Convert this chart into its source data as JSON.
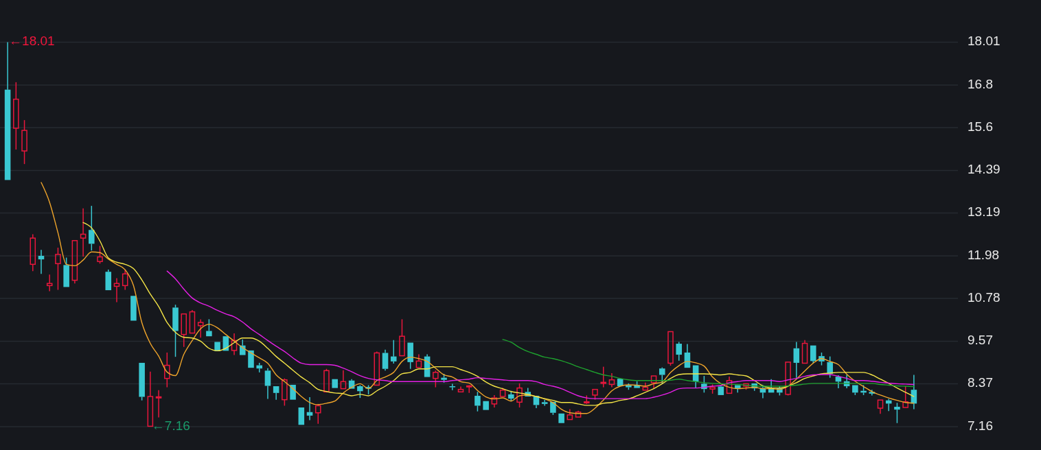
{
  "chart_data": {
    "type": "candlestick",
    "categories": [
      null,
      null,
      null,
      null,
      null,
      null,
      null,
      null,
      null,
      null,
      null,
      null,
      null,
      null,
      null,
      null,
      null,
      null,
      null,
      null,
      null,
      null,
      null,
      null,
      null,
      null,
      null,
      null,
      null,
      null,
      null,
      null,
      null,
      null,
      null,
      null,
      null,
      null,
      null,
      null,
      null,
      null,
      null,
      null,
      null,
      null,
      null,
      null,
      null,
      null,
      null,
      null,
      null,
      null,
      null,
      null,
      null,
      null,
      null,
      null,
      null,
      null,
      null,
      null,
      null,
      null,
      null,
      null,
      null,
      null,
      null,
      null,
      null,
      null,
      null,
      null,
      null,
      null,
      null,
      null,
      null,
      null,
      null,
      null,
      null,
      null,
      null,
      null,
      null,
      null,
      null,
      null,
      null,
      null,
      null,
      null,
      null,
      null,
      null,
      null,
      null,
      null,
      null,
      null,
      null,
      null,
      null,
      null,
      null
    ],
    "ohlc": [
      [
        16.67,
        18.01,
        14.12,
        14.12
      ],
      [
        15.58,
        16.88,
        14.98,
        16.4
      ],
      [
        14.94,
        15.81,
        14.57,
        15.52
      ],
      [
        11.74,
        12.59,
        11.55,
        12.48
      ],
      [
        11.98,
        12.15,
        11.47,
        11.88
      ],
      [
        11.14,
        11.45,
        10.98,
        11.2
      ],
      [
        11.76,
        12.21,
        11.02,
        12.02
      ],
      [
        11.72,
        11.93,
        11.1,
        11.1
      ],
      [
        11.29,
        12.41,
        11.2,
        12.41
      ],
      [
        12.48,
        13.32,
        11.96,
        12.59
      ],
      [
        12.71,
        13.39,
        12.13,
        12.32
      ],
      [
        11.82,
        12.26,
        11.76,
        11.95
      ],
      [
        11.53,
        11.59,
        11.01,
        11.01
      ],
      [
        11.12,
        11.35,
        10.67,
        11.2
      ],
      [
        11.14,
        11.59,
        11.02,
        11.47
      ],
      [
        10.85,
        10.85,
        10.15,
        10.15
      ],
      [
        8.96,
        8.96,
        7.9,
        8.0
      ],
      [
        7.17,
        8.71,
        7.16,
        8.01
      ],
      [
        7.97,
        8.19,
        7.42,
        8.0
      ],
      [
        8.52,
        9.25,
        8.27,
        8.89
      ],
      [
        10.52,
        10.6,
        9.13,
        9.86
      ],
      [
        9.76,
        10.34,
        9.41,
        10.34
      ],
      [
        9.8,
        10.45,
        9.8,
        10.4
      ],
      [
        10.01,
        10.19,
        9.67,
        10.1
      ],
      [
        9.86,
        10.19,
        9.71,
        9.71
      ],
      [
        9.55,
        9.55,
        9.29,
        9.29
      ],
      [
        9.71,
        9.71,
        9.3,
        9.3
      ],
      [
        9.31,
        9.79,
        9.18,
        9.59
      ],
      [
        9.45,
        9.62,
        9.18,
        9.18
      ],
      [
        9.31,
        9.31,
        8.82,
        8.82
      ],
      [
        8.89,
        8.96,
        8.69,
        8.8
      ],
      [
        8.74,
        8.81,
        7.94,
        8.31
      ],
      [
        8.3,
        8.3,
        7.92,
        8.11
      ],
      [
        7.92,
        8.52,
        7.75,
        8.48
      ],
      [
        8.34,
        8.34,
        7.92,
        7.92
      ],
      [
        7.7,
        7.7,
        7.21,
        7.21
      ],
      [
        7.57,
        7.99,
        7.34,
        7.47
      ],
      [
        7.55,
        7.8,
        7.24,
        7.75
      ],
      [
        8.14,
        8.79,
        8.14,
        8.74
      ],
      [
        8.5,
        8.5,
        8.25,
        8.25
      ],
      [
        8.23,
        8.75,
        8.23,
        8.43
      ],
      [
        8.46,
        8.5,
        8.23,
        8.23
      ],
      [
        8.3,
        8.33,
        7.97,
        8.16
      ],
      [
        8.28,
        8.33,
        8.07,
        8.23
      ],
      [
        8.33,
        9.28,
        8.33,
        9.24
      ],
      [
        9.24,
        9.33,
        8.74,
        8.79
      ],
      [
        9.14,
        9.6,
        8.94,
        9.0
      ],
      [
        9.16,
        10.19,
        9.16,
        9.71
      ],
      [
        9.53,
        9.53,
        8.79,
        8.98
      ],
      [
        8.83,
        9.2,
        8.83,
        9.01
      ],
      [
        9.14,
        9.2,
        8.56,
        8.56
      ],
      [
        8.52,
        8.74,
        8.27,
        8.69
      ],
      [
        8.54,
        8.65,
        8.4,
        8.48
      ],
      [
        8.3,
        8.37,
        8.19,
        8.27
      ],
      [
        8.14,
        8.29,
        8.14,
        8.21
      ],
      [
        8.29,
        8.33,
        8.11,
        8.31
      ],
      [
        8.03,
        8.14,
        7.59,
        7.75
      ],
      [
        7.88,
        7.88,
        7.63,
        7.63
      ],
      [
        7.8,
        8.05,
        7.7,
        7.97
      ],
      [
        8.01,
        8.25,
        8.01,
        8.19
      ],
      [
        8.07,
        8.17,
        7.88,
        7.95
      ],
      [
        7.85,
        8.38,
        7.7,
        8.25
      ],
      [
        8.14,
        8.25,
        8.01,
        8.01
      ],
      [
        8.03,
        8.03,
        7.68,
        7.77
      ],
      [
        7.85,
        7.92,
        7.75,
        7.8
      ],
      [
        7.86,
        7.86,
        7.49,
        7.55
      ],
      [
        7.53,
        7.53,
        7.26,
        7.26
      ],
      [
        7.36,
        7.65,
        7.36,
        7.49
      ],
      [
        7.43,
        7.61,
        7.43,
        7.57
      ],
      [
        7.83,
        8.04,
        7.8,
        7.86
      ],
      [
        8.05,
        8.21,
        7.92,
        8.21
      ],
      [
        8.38,
        8.85,
        8.27,
        8.41
      ],
      [
        8.35,
        8.67,
        8.27,
        8.48
      ],
      [
        8.51,
        8.51,
        8.3,
        8.3
      ],
      [
        8.33,
        8.38,
        8.2,
        8.27
      ],
      [
        8.33,
        8.44,
        8.25,
        8.25
      ],
      [
        8.19,
        8.4,
        8.19,
        8.27
      ],
      [
        8.4,
        8.59,
        8.24,
        8.59
      ],
      [
        8.8,
        8.83,
        8.37,
        8.62
      ],
      [
        8.95,
        9.84,
        8.88,
        9.84
      ],
      [
        9.5,
        9.55,
        9.02,
        9.19
      ],
      [
        9.25,
        9.49,
        8.82,
        8.82
      ],
      [
        8.89,
        8.89,
        8.25,
        8.43
      ],
      [
        8.37,
        8.59,
        8.12,
        8.22
      ],
      [
        8.22,
        8.35,
        8.09,
        8.27
      ],
      [
        8.29,
        8.33,
        8.05,
        8.05
      ],
      [
        8.1,
        8.57,
        8.1,
        8.46
      ],
      [
        8.33,
        8.33,
        8.12,
        8.24
      ],
      [
        8.3,
        8.38,
        8.2,
        8.37
      ],
      [
        8.38,
        8.38,
        8.17,
        8.24
      ],
      [
        8.25,
        8.33,
        7.96,
        8.12
      ],
      [
        8.25,
        8.5,
        8.12,
        8.12
      ],
      [
        8.24,
        8.3,
        8.04,
        8.12
      ],
      [
        8.07,
        8.98,
        8.04,
        8.98
      ],
      [
        9.37,
        9.55,
        8.54,
        8.96
      ],
      [
        8.95,
        9.6,
        8.95,
        9.51
      ],
      [
        9.45,
        9.45,
        8.94,
        9.01
      ],
      [
        9.15,
        9.25,
        8.89,
        9.0
      ],
      [
        8.98,
        9.14,
        8.54,
        8.65
      ],
      [
        8.57,
        8.61,
        8.24,
        8.43
      ],
      [
        8.44,
        8.62,
        8.24,
        8.3
      ],
      [
        8.33,
        8.33,
        8.05,
        8.12
      ],
      [
        8.17,
        8.33,
        8.05,
        8.12
      ],
      [
        8.14,
        8.2,
        8.04,
        8.09
      ],
      [
        7.68,
        7.91,
        7.52,
        7.91
      ],
      [
        7.9,
        7.94,
        7.6,
        7.81
      ],
      [
        7.72,
        7.83,
        7.26,
        7.64
      ],
      [
        7.7,
        8.3,
        7.7,
        7.86
      ],
      [
        8.2,
        8.62,
        7.65,
        7.81
      ]
    ],
    "colors": [
      "#3ac8d2",
      "#e8173c",
      "#e8173c",
      "#e8173c",
      "#3ac8d2",
      "#e8173c",
      "#e8173c",
      "#3ac8d2",
      "#e8173c",
      "#e8173c",
      "#3ac8d2",
      "#e8173c",
      "#3ac8d2",
      "#e8173c",
      "#e8173c",
      "#3ac8d2",
      "#3ac8d2",
      "#e8173c",
      "#e8173c",
      "#e8173c",
      "#3ac8d2",
      "#e8173c",
      "#e8173c",
      "#e8173c",
      "#3ac8d2",
      "#3ac8d2",
      "#3ac8d2",
      "#e8173c",
      "#3ac8d2",
      "#3ac8d2",
      "#3ac8d2",
      "#3ac8d2",
      "#3ac8d2",
      "#e8173c",
      "#3ac8d2",
      "#3ac8d2",
      "#3ac8d2",
      "#e8173c",
      "#e8173c",
      "#3ac8d2",
      "#e8173c",
      "#3ac8d2",
      "#3ac8d2",
      "#3ac8d2",
      "#e8173c",
      "#3ac8d2",
      "#3ac8d2",
      "#e8173c",
      "#3ac8d2",
      "#e8173c",
      "#3ac8d2",
      "#e8173c",
      "#3ac8d2",
      "#3ac8d2",
      "#e8173c",
      "#e8173c",
      "#3ac8d2",
      "#3ac8d2",
      "#e8173c",
      "#e8173c",
      "#3ac8d2",
      "#e8173c",
      "#3ac8d2",
      "#3ac8d2",
      "#3ac8d2",
      "#3ac8d2",
      "#3ac8d2",
      "#e8173c",
      "#e8173c",
      "#e8173c",
      "#e8173c",
      "#e8173c",
      "#e8173c",
      "#3ac8d2",
      "#3ac8d2",
      "#3ac8d2",
      "#e8173c",
      "#e8173c",
      "#3ac8d2",
      "#e8173c",
      "#3ac8d2",
      "#3ac8d2",
      "#3ac8d2",
      "#3ac8d2",
      "#e8173c",
      "#3ac8d2",
      "#e8173c",
      "#3ac8d2",
      "#e8173c",
      "#3ac8d2",
      "#3ac8d2",
      "#3ac8d2",
      "#3ac8d2",
      "#e8173c",
      "#3ac8d2",
      "#e8173c",
      "#3ac8d2",
      "#3ac8d2",
      "#3ac8d2",
      "#3ac8d2",
      "#3ac8d2",
      "#3ac8d2",
      "#3ac8d2",
      "#3ac8d2",
      "#e8173c",
      "#3ac8d2",
      "#3ac8d2",
      "#e8173c",
      "#3ac8d2"
    ],
    "series": [
      {
        "type": "line",
        "color": "#f0a52b",
        "values": [
          null,
          null,
          null,
          null,
          14.05,
          13.49,
          12.63,
          11.74,
          11.7,
          11.86,
          12.09,
          12.07,
          11.89,
          11.74,
          11.59,
          11.14,
          10.09,
          9.51,
          9.15,
          8.7,
          8.6,
          9.2,
          9.59,
          9.92,
          10.05,
          9.95,
          9.76,
          9.57,
          9.39,
          9.24,
          9.1,
          8.95,
          8.62,
          8.43,
          8.23,
          8.01,
          7.84,
          7.78,
          7.82,
          7.88,
          8.11,
          8.27,
          8.37,
          8.23,
          8.46,
          8.56,
          8.69,
          9.0,
          9.12,
          9.08,
          9.0,
          8.81,
          8.62,
          8.56,
          8.43,
          8.39,
          8.18,
          8.0,
          7.94,
          7.97,
          7.88,
          8.03,
          8.05,
          8.01,
          7.94,
          7.84,
          7.65,
          7.55,
          7.53,
          7.53,
          7.68,
          7.91,
          8.17,
          8.3,
          8.34,
          8.33,
          8.3,
          8.37,
          8.42,
          8.69,
          8.88,
          9.0,
          8.96,
          8.87,
          8.56,
          8.37,
          8.27,
          8.23,
          8.25,
          8.27,
          8.23,
          8.23,
          8.21,
          8.3,
          8.5,
          8.73,
          8.95,
          9.08,
          9.0,
          8.91,
          8.64,
          8.44,
          8.29,
          8.15,
          8.05,
          7.97,
          7.9,
          7.84,
          7.82
        ]
      },
      {
        "type": "line",
        "color": "#f5e547",
        "values": [
          null,
          null,
          null,
          null,
          null,
          null,
          null,
          null,
          null,
          12.92,
          12.77,
          12.4,
          11.92,
          11.8,
          11.74,
          11.62,
          11.3,
          10.9,
          10.55,
          10.1,
          9.82,
          9.68,
          9.66,
          9.57,
          9.37,
          9.3,
          9.37,
          9.53,
          9.66,
          9.66,
          9.57,
          9.37,
          9.14,
          8.95,
          8.75,
          8.56,
          8.4,
          8.21,
          8.15,
          8.11,
          8.09,
          8.03,
          8.07,
          8.03,
          8.17,
          8.3,
          8.46,
          8.65,
          8.69,
          8.79,
          8.79,
          8.85,
          8.85,
          8.85,
          8.77,
          8.69,
          8.58,
          8.42,
          8.3,
          8.23,
          8.15,
          8.11,
          8.07,
          8.01,
          7.95,
          7.9,
          7.84,
          7.84,
          7.8,
          7.76,
          7.76,
          7.82,
          7.84,
          7.9,
          7.94,
          8.03,
          8.13,
          8.23,
          8.37,
          8.52,
          8.63,
          8.65,
          8.65,
          8.65,
          8.64,
          8.62,
          8.65,
          8.62,
          8.59,
          8.46,
          8.31,
          8.25,
          8.25,
          8.3,
          8.4,
          8.52,
          8.59,
          8.65,
          8.67,
          8.69,
          8.69,
          8.69,
          8.69,
          8.62,
          8.5,
          8.38,
          8.25,
          8.13,
          8.01
        ]
      },
      {
        "type": "line",
        "color": "#e620e6",
        "values": [
          null,
          null,
          null,
          null,
          null,
          null,
          null,
          null,
          null,
          null,
          null,
          null,
          null,
          null,
          null,
          null,
          null,
          null,
          null,
          11.55,
          11.33,
          11.04,
          10.79,
          10.65,
          10.56,
          10.44,
          10.34,
          10.26,
          10.11,
          9.92,
          9.76,
          9.59,
          9.43,
          9.28,
          9.1,
          8.95,
          8.91,
          8.91,
          8.91,
          8.89,
          8.81,
          8.71,
          8.6,
          8.52,
          8.48,
          8.46,
          8.43,
          8.43,
          8.43,
          8.43,
          8.43,
          8.43,
          8.43,
          8.46,
          8.48,
          8.5,
          8.54,
          8.52,
          8.5,
          8.48,
          8.46,
          8.46,
          8.46,
          8.43,
          8.35,
          8.3,
          8.23,
          8.13,
          8.03,
          7.97,
          7.95,
          7.95,
          7.95,
          7.95,
          7.95,
          7.95,
          7.95,
          7.99,
          8.05,
          8.13,
          8.23,
          8.25,
          8.25,
          8.27,
          8.3,
          8.32,
          8.4,
          8.43,
          8.46,
          8.46,
          8.46,
          8.46,
          8.43,
          8.48,
          8.52,
          8.58,
          8.62,
          8.63,
          8.63,
          8.58,
          8.52,
          8.46,
          8.46,
          8.44,
          8.41,
          8.39,
          8.37,
          8.36,
          8.35
        ]
      },
      {
        "type": "line",
        "color": "#1ea02e",
        "values": [
          null,
          null,
          null,
          null,
          null,
          null,
          null,
          null,
          null,
          null,
          null,
          null,
          null,
          null,
          null,
          null,
          null,
          null,
          null,
          null,
          null,
          null,
          null,
          null,
          null,
          null,
          null,
          null,
          null,
          null,
          null,
          null,
          null,
          null,
          null,
          null,
          null,
          null,
          null,
          null,
          null,
          null,
          null,
          null,
          null,
          null,
          null,
          null,
          null,
          null,
          null,
          null,
          null,
          null,
          null,
          null,
          null,
          null,
          null,
          9.62,
          9.54,
          9.39,
          9.28,
          9.2,
          9.12,
          9.08,
          9.02,
          8.94,
          8.85,
          8.77,
          8.69,
          8.62,
          8.58,
          8.52,
          8.48,
          8.46,
          8.46,
          8.46,
          8.46,
          8.47,
          8.5,
          8.46,
          8.43,
          8.4,
          8.38,
          8.37,
          8.36,
          8.35,
          8.33,
          8.31,
          8.3,
          8.3,
          8.3,
          8.31,
          8.33,
          8.36,
          8.38,
          8.38,
          8.38,
          8.38,
          8.38,
          8.38,
          8.38,
          8.38,
          8.35,
          8.33,
          8.31,
          8.3,
          8.29
        ]
      }
    ],
    "ylim": [
      6.5,
      19.2
    ],
    "yticks": [
      7.16,
      8.37,
      9.57,
      10.78,
      11.98,
      13.19,
      14.39,
      15.6,
      16.8,
      18.01
    ],
    "tick_labels": "y",
    "grid": "y",
    "annotations": [
      "←18.01",
      "←7.16"
    ]
  }
}
